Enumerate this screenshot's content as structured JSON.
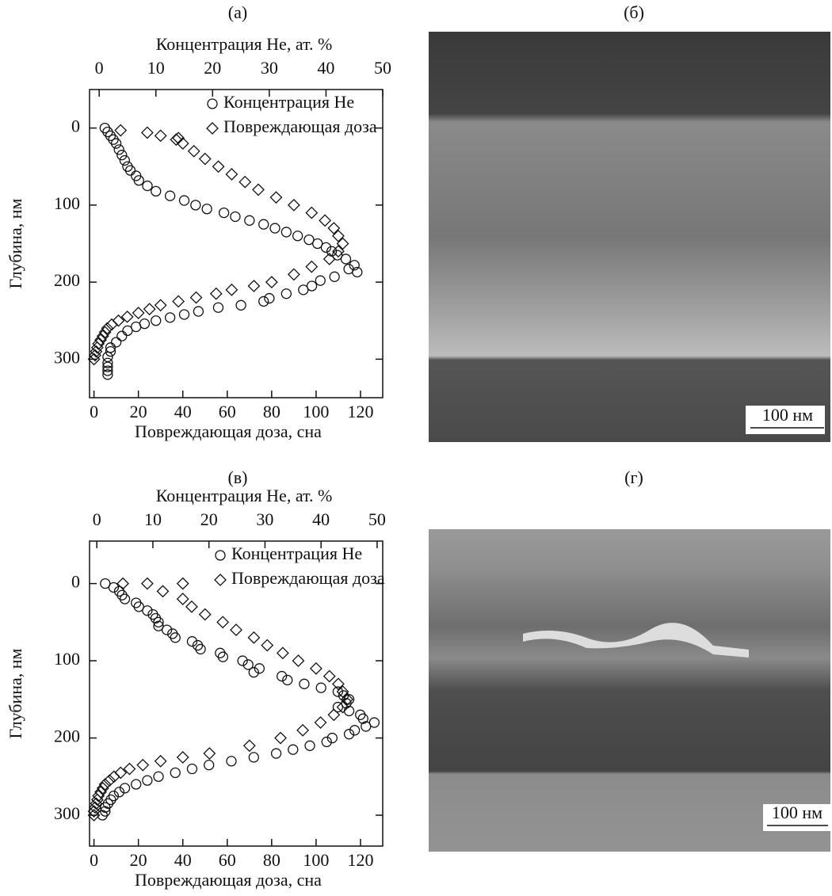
{
  "chart_data": [
    {
      "type": "scatter",
      "label": "(а)",
      "x_label": "Повреждающая доза, сна",
      "x2_label": "Концентрация He, ат. %",
      "y_label": "Глубина, нм",
      "xlim": [
        -2,
        130
      ],
      "xticks": [
        0,
        20,
        40,
        60,
        80,
        100,
        120
      ],
      "x2lim": [
        -1.7,
        50
      ],
      "x2ticks": [
        0,
        10,
        20,
        30,
        40,
        50
      ],
      "ylim": [
        -50,
        350
      ],
      "yticks": [
        0,
        100,
        200,
        300
      ],
      "y_inverted": true,
      "series": [
        {
          "name": "Концентрация He",
          "marker": "circle",
          "axis": "x2",
          "x": [
            1,
            1.5,
            2,
            2.5,
            3,
            3.5,
            4,
            4.5,
            5,
            5.5,
            6.5,
            7,
            8.5,
            10,
            12.5,
            15,
            17,
            19,
            22,
            24,
            26.5,
            29,
            31,
            33,
            35,
            37,
            38.5,
            40,
            41,
            42,
            43.5,
            45,
            45.5,
            44,
            41.5,
            39,
            37.5,
            36,
            33,
            30,
            29,
            25,
            21,
            17.5,
            15,
            12.5,
            10,
            8,
            6.5,
            5,
            4,
            3,
            2,
            2,
            1.5,
            1.5,
            1.5,
            1.5,
            1.5
          ],
          "values": [
            0,
            5,
            10,
            15,
            20,
            28,
            35,
            42,
            50,
            55,
            62,
            68,
            75,
            82,
            88,
            94,
            100,
            105,
            110,
            115,
            120,
            125,
            130,
            135,
            140,
            145,
            150,
            155,
            160,
            165,
            170,
            178,
            187,
            183,
            193,
            198,
            205,
            210,
            215,
            221,
            225,
            230,
            233,
            238,
            242,
            246,
            250,
            254,
            258,
            263,
            270,
            278,
            285,
            290,
            297,
            305,
            310,
            315,
            320
          ]
        },
        {
          "name": "Повреждающая доза",
          "marker": "diamond",
          "axis": "x",
          "x": [
            12,
            24,
            30,
            38,
            37,
            40,
            45,
            50,
            56,
            62,
            68,
            74,
            82,
            90,
            98,
            104,
            108,
            110,
            112,
            110,
            106,
            98,
            90,
            80,
            72,
            62,
            55,
            46,
            38,
            30,
            25,
            20,
            15,
            11,
            8,
            6,
            5,
            4,
            3,
            2,
            1.5,
            1,
            0.5,
            0
          ],
          "values": [
            3,
            6,
            10,
            13,
            15,
            20,
            30,
            40,
            50,
            60,
            70,
            80,
            90,
            100,
            110,
            120,
            130,
            140,
            150,
            160,
            170,
            180,
            190,
            200,
            205,
            210,
            215,
            220,
            225,
            230,
            235,
            240,
            245,
            250,
            255,
            260,
            265,
            270,
            275,
            280,
            285,
            290,
            295,
            300
          ]
        }
      ]
    },
    {
      "type": "scatter",
      "label": "(в)",
      "x_label": "Повреждающая доза, сна",
      "x2_label": "Концентрация He, ат. %",
      "y_label": "Глубина, нм",
      "xlim": [
        -2,
        130
      ],
      "xticks": [
        0,
        20,
        40,
        60,
        80,
        100,
        120
      ],
      "x2lim": [
        -1.3,
        51
      ],
      "x2ticks": [
        0,
        10,
        20,
        30,
        40,
        50
      ],
      "ylim": [
        -55,
        340
      ],
      "yticks": [
        0,
        100,
        200,
        300
      ],
      "y_inverted": true,
      "series": [
        {
          "name": "Концентрация He",
          "marker": "circle",
          "axis": "x2",
          "x": [
            1.5,
            3,
            4,
            4.5,
            5,
            7,
            7.5,
            9,
            10,
            10.5,
            11,
            11,
            12.5,
            13.5,
            14,
            17,
            18,
            18.5,
            22,
            22.5,
            26,
            27,
            29,
            28,
            33,
            34,
            37,
            40,
            43,
            44,
            45,
            44.5,
            43,
            45,
            47,
            47.5,
            49.5,
            48,
            46,
            45,
            42,
            41,
            38,
            35,
            32,
            28,
            24,
            20,
            17,
            14,
            11,
            9,
            7,
            5,
            4,
            3,
            2.5,
            2,
            1.5,
            1.5,
            1
          ],
          "values": [
            0,
            5,
            10,
            15,
            20,
            25,
            30,
            35,
            40,
            45,
            50,
            55,
            60,
            65,
            70,
            75,
            80,
            85,
            90,
            95,
            100,
            105,
            110,
            115,
            120,
            125,
            130,
            135,
            140,
            145,
            150,
            155,
            160,
            165,
            170,
            175,
            180,
            185,
            190,
            195,
            200,
            205,
            210,
            215,
            220,
            225,
            230,
            235,
            240,
            245,
            250,
            255,
            260,
            265,
            270,
            275,
            280,
            285,
            290,
            295,
            300
          ]
        },
        {
          "name": "Повреждающая доза",
          "marker": "diamond",
          "axis": "x",
          "x": [
            13,
            24,
            40,
            31,
            40,
            44,
            50,
            58,
            64,
            72,
            78,
            85,
            92,
            100,
            106,
            110,
            112,
            114,
            112,
            108,
            102,
            94,
            84,
            70,
            52,
            40,
            30,
            22,
            16,
            12,
            9,
            7,
            5,
            4,
            3,
            2,
            1.5,
            1,
            0.5,
            0,
            0
          ],
          "values": [
            0,
            0,
            0,
            10,
            20,
            30,
            40,
            50,
            60,
            70,
            80,
            90,
            100,
            110,
            120,
            130,
            140,
            150,
            160,
            170,
            180,
            190,
            200,
            210,
            220,
            225,
            230,
            235,
            240,
            245,
            250,
            255,
            260,
            265,
            270,
            275,
            280,
            285,
            290,
            295,
            300
          ]
        }
      ]
    }
  ],
  "images": [
    {
      "label": "(б)",
      "scale_bar": "100 нм"
    },
    {
      "label": "(г)",
      "scale_bar": "100 нм"
    }
  ]
}
